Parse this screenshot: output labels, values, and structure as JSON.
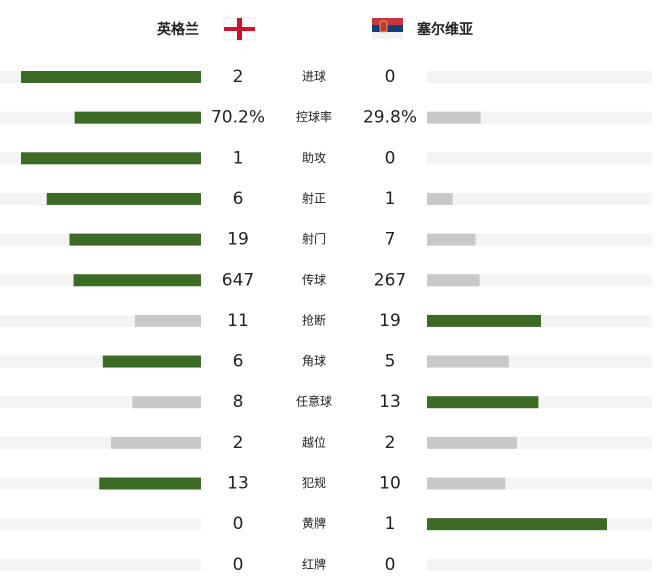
{
  "header": {
    "home": "英格兰",
    "away": "塞尔维亚"
  },
  "colors": {
    "lead": "#3c6b25",
    "trail": "#c8c8c8",
    "track": "#f4f4f4"
  },
  "stats": [
    {
      "label": "进球",
      "home": 2,
      "away": 0
    },
    {
      "label": "控球率",
      "home": 70.2,
      "away": 29.8,
      "home_label": "70.2%",
      "away_label": "29.8%"
    },
    {
      "label": "助攻",
      "home": 1,
      "away": 0
    },
    {
      "label": "射正",
      "home": 6,
      "away": 1
    },
    {
      "label": "射门",
      "home": 19,
      "away": 7
    },
    {
      "label": "传球",
      "home": 647,
      "away": 267
    },
    {
      "label": "抢断",
      "home": 11,
      "away": 19
    },
    {
      "label": "角球",
      "home": 6,
      "away": 5
    },
    {
      "label": "任意球",
      "home": 8,
      "away": 13
    },
    {
      "label": "越位",
      "home": 2,
      "away": 2
    },
    {
      "label": "犯规",
      "home": 13,
      "away": 10
    },
    {
      "label": "黄牌",
      "home": 0,
      "away": 1
    },
    {
      "label": "红牌",
      "home": 0,
      "away": 0
    }
  ]
}
